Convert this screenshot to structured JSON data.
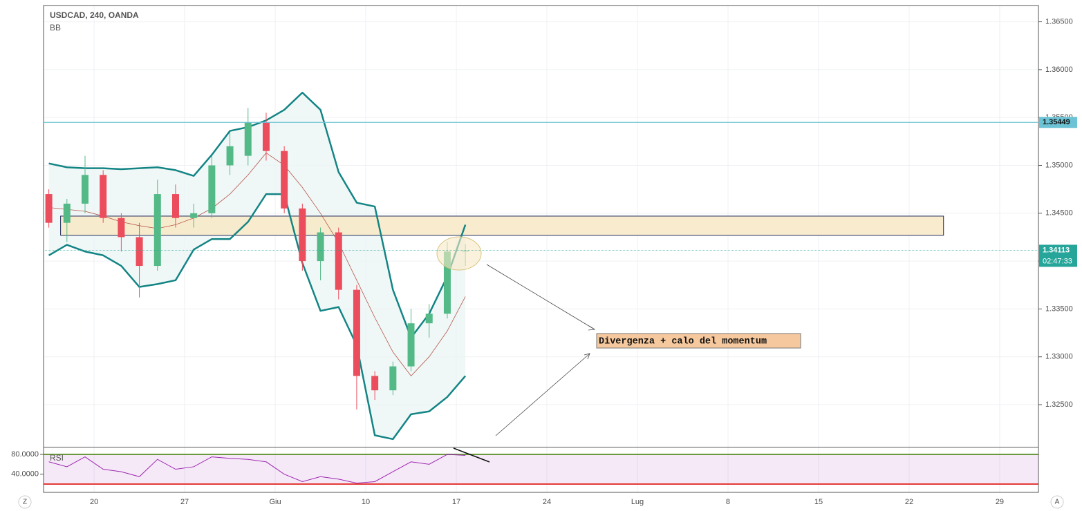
{
  "chart_data": {
    "type": "candlestick",
    "title": "USDCAD, 240, OANDA",
    "indicator": "BB",
    "x": [
      -2.5,
      -1.5,
      -0.5,
      0.5,
      1.5,
      2.5,
      3.5,
      4.5,
      5.5,
      6.5,
      7.5,
      8.5,
      9.5,
      10.5,
      11.5,
      12.5,
      13.5,
      14.5,
      15.5,
      16.5,
      17.5,
      18.5,
      19.5,
      20.5
    ],
    "open": [
      1.347,
      1.344,
      1.346,
      1.349,
      1.3445,
      1.3425,
      1.3395,
      1.347,
      1.3445,
      1.345,
      1.35,
      1.351,
      1.3545,
      1.3515,
      1.3455,
      1.34,
      1.343,
      1.337,
      1.328,
      1.3265,
      1.329,
      1.3335,
      1.3345,
      1.341
    ],
    "high": [
      1.3475,
      1.3465,
      1.351,
      1.3495,
      1.345,
      1.344,
      1.3485,
      1.348,
      1.346,
      1.351,
      1.3535,
      1.356,
      1.3555,
      1.352,
      1.346,
      1.3435,
      1.3435,
      1.3375,
      1.3285,
      1.3295,
      1.335,
      1.3355,
      1.342,
      1.3418
    ],
    "low": [
      1.3435,
      1.342,
      1.345,
      1.344,
      1.341,
      1.3362,
      1.339,
      1.3435,
      1.3435,
      1.3445,
      1.349,
      1.35,
      1.3505,
      1.345,
      1.339,
      1.338,
      1.336,
      1.3245,
      1.3255,
      1.326,
      1.3285,
      1.332,
      1.334,
      1.3395
    ],
    "close": [
      1.344,
      1.346,
      1.349,
      1.3445,
      1.3425,
      1.3395,
      1.347,
      1.3445,
      1.345,
      1.35,
      1.352,
      1.3545,
      1.3515,
      1.3455,
      1.34,
      1.343,
      1.337,
      1.328,
      1.3265,
      1.329,
      1.3335,
      1.3345,
      1.341,
      1.3411
    ],
    "up_color": "#53b987",
    "down_color": "#eb4d5c",
    "bands": {
      "upper": [
        1.3502,
        1.3498,
        1.3497,
        1.3497,
        1.3496,
        1.3497,
        1.3498,
        1.3495,
        1.3489,
        1.3511,
        1.3536,
        1.354,
        1.3547,
        1.3558,
        1.3576,
        1.3558,
        1.3493,
        1.3461,
        1.3457,
        1.337,
        1.332,
        1.3345,
        1.3384,
        1.3438
      ],
      "middle": [
        1.3456,
        1.3454,
        1.3452,
        1.3447,
        1.3441,
        1.3437,
        1.3434,
        1.3438,
        1.3445,
        1.3455,
        1.347,
        1.349,
        1.3513,
        1.35,
        1.3477,
        1.345,
        1.3419,
        1.338,
        1.3341,
        1.3305,
        1.328,
        1.33,
        1.3327,
        1.3363
      ],
      "lower": [
        1.3406,
        1.3417,
        1.341,
        1.3406,
        1.3395,
        1.3373,
        1.3376,
        1.338,
        1.3412,
        1.3423,
        1.3423,
        1.3441,
        1.347,
        1.347,
        1.3398,
        1.3348,
        1.3352,
        1.3312,
        1.3218,
        1.3214,
        1.324,
        1.3243,
        1.3258,
        1.328
      ],
      "color": "#138484",
      "middle_color": "#b5574b",
      "fill": "#e9f4f3"
    },
    "xlim": [
      -2.79,
      52.14
    ],
    "xticks": [
      {
        "value": 0,
        "label": "20"
      },
      {
        "value": 5,
        "label": "27"
      },
      {
        "value": 10,
        "label": "Giu"
      },
      {
        "value": 15,
        "label": "10"
      },
      {
        "value": 20,
        "label": "17"
      },
      {
        "value": 25,
        "label": "24"
      },
      {
        "value": 30,
        "label": "Lug"
      },
      {
        "value": 35,
        "label": "8"
      },
      {
        "value": 40,
        "label": "15"
      },
      {
        "value": 45,
        "label": "22"
      },
      {
        "value": 50,
        "label": "29"
      }
    ],
    "ylim": [
      1.3206,
      1.3667
    ],
    "yticks": [
      {
        "value": 1.325,
        "label": "1.32500"
      },
      {
        "value": 1.33,
        "label": "1.33000"
      },
      {
        "value": 1.335,
        "label": "1.33500"
      },
      {
        "value": 1.34,
        "label": "1.34000"
      },
      {
        "value": 1.345,
        "label": "1.34500"
      },
      {
        "value": 1.35,
        "label": "1.35000"
      },
      {
        "value": 1.355,
        "label": "1.35500"
      },
      {
        "value": 1.36,
        "label": "1.36000"
      },
      {
        "value": 1.365,
        "label": "1.36500"
      }
    ],
    "grid": true,
    "level_line": {
      "value": 1.35449,
      "color": "#6cc3d5"
    },
    "last_price": {
      "value": 1.34113,
      "color": "#26a69a",
      "countdown": "02:47:33"
    },
    "zone": {
      "x0": -1.85,
      "x1": 46.9,
      "y0": 1.3427,
      "y1": 1.3447,
      "fill": "#f8e9c6",
      "stroke": "#1e2a5a"
    },
    "annotation": "Divergenza + calo del momentum",
    "rsi": {
      "name": "RSI",
      "values": [
        65,
        55,
        75,
        50,
        45,
        35,
        70,
        50,
        55,
        75,
        72,
        70,
        65,
        40,
        25,
        35,
        30,
        22,
        25,
        45,
        65,
        60,
        80,
        78
      ],
      "color": "#9c27b0",
      "ylim": [
        4.7,
        94
      ],
      "yticks": [
        {
          "value": 80,
          "label": "80.0000"
        },
        {
          "value": 40,
          "label": "40.0000"
        }
      ],
      "upper_level": 80,
      "lower_level": 20
    }
  },
  "controls": {
    "left": "Z",
    "right": "A"
  }
}
